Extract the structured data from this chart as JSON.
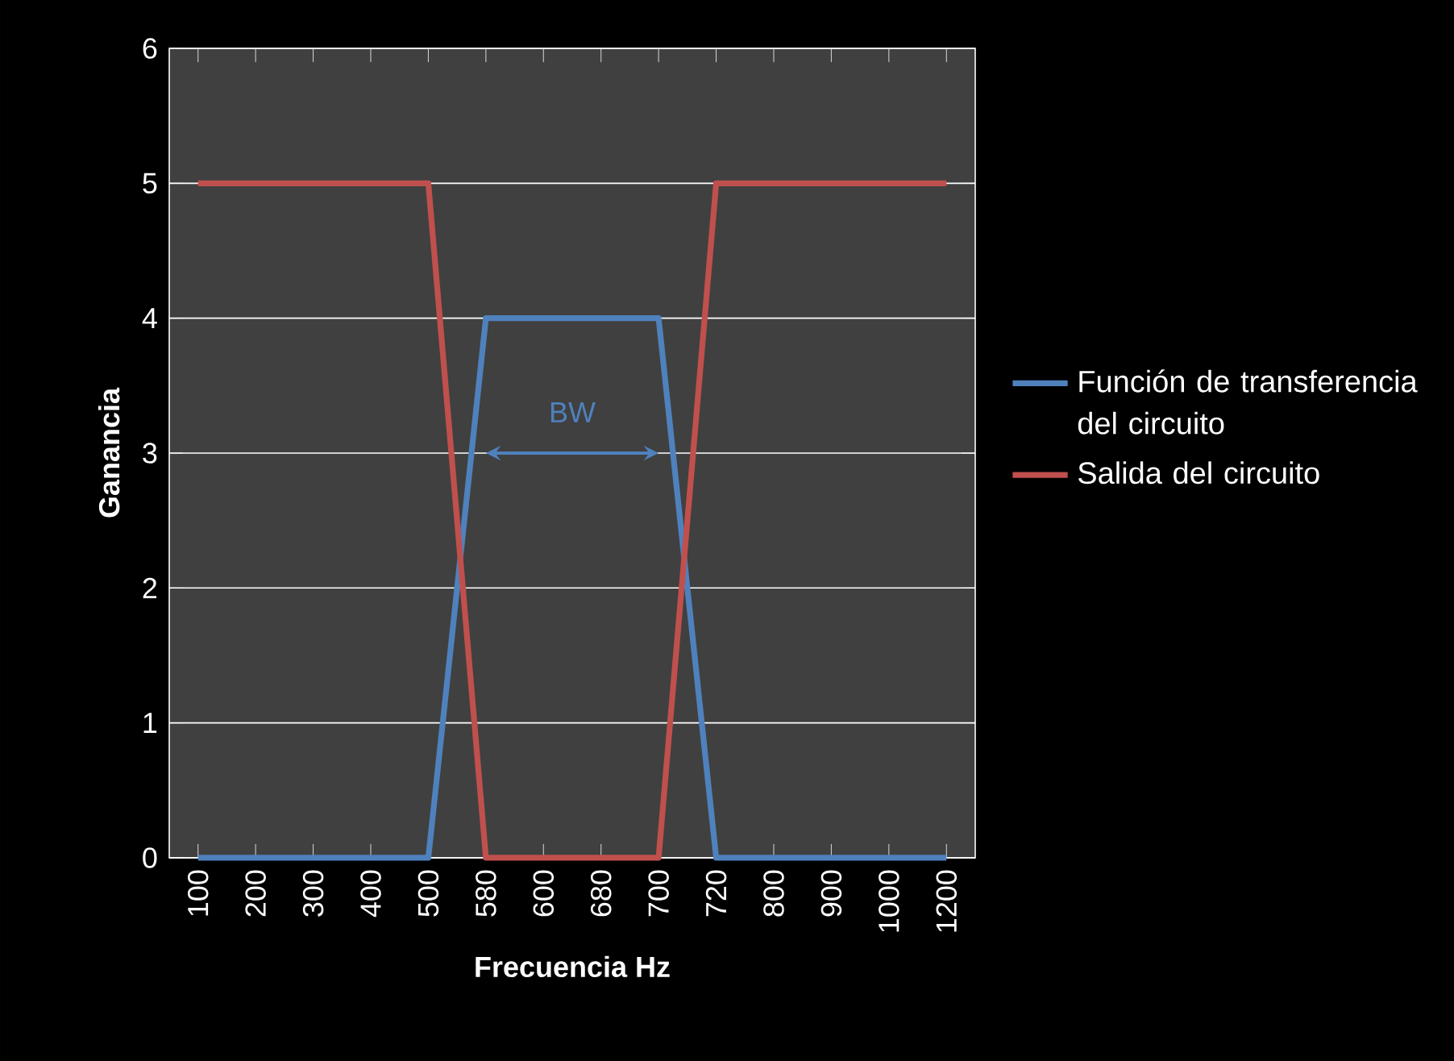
{
  "chart_data": {
    "type": "line",
    "xlabel": "Frecuencia Hz",
    "ylabel": "Ganancia",
    "categories": [
      "100",
      "200",
      "300",
      "400",
      "500",
      "580",
      "600",
      "680",
      "700",
      "720",
      "800",
      "900",
      "1000",
      "1200"
    ],
    "series": [
      {
        "name": "Función de transferencia del circuito",
        "color": "#4f81bd",
        "values": [
          0,
          0,
          0,
          0,
          0,
          4,
          4,
          4,
          4,
          0,
          0,
          0,
          0,
          0
        ]
      },
      {
        "name": "Salida del circuito",
        "color": "#c0504d",
        "values": [
          5,
          5,
          5,
          5,
          5,
          0,
          0,
          0,
          0,
          5,
          5,
          5,
          5,
          5
        ]
      }
    ],
    "ylim": [
      0,
      6
    ],
    "yticks": [
      0,
      1,
      2,
      3,
      4,
      5,
      6
    ],
    "grid": "y",
    "legend": "right",
    "marker": "none",
    "line_style": "solid",
    "annotations": [
      "BW"
    ]
  }
}
